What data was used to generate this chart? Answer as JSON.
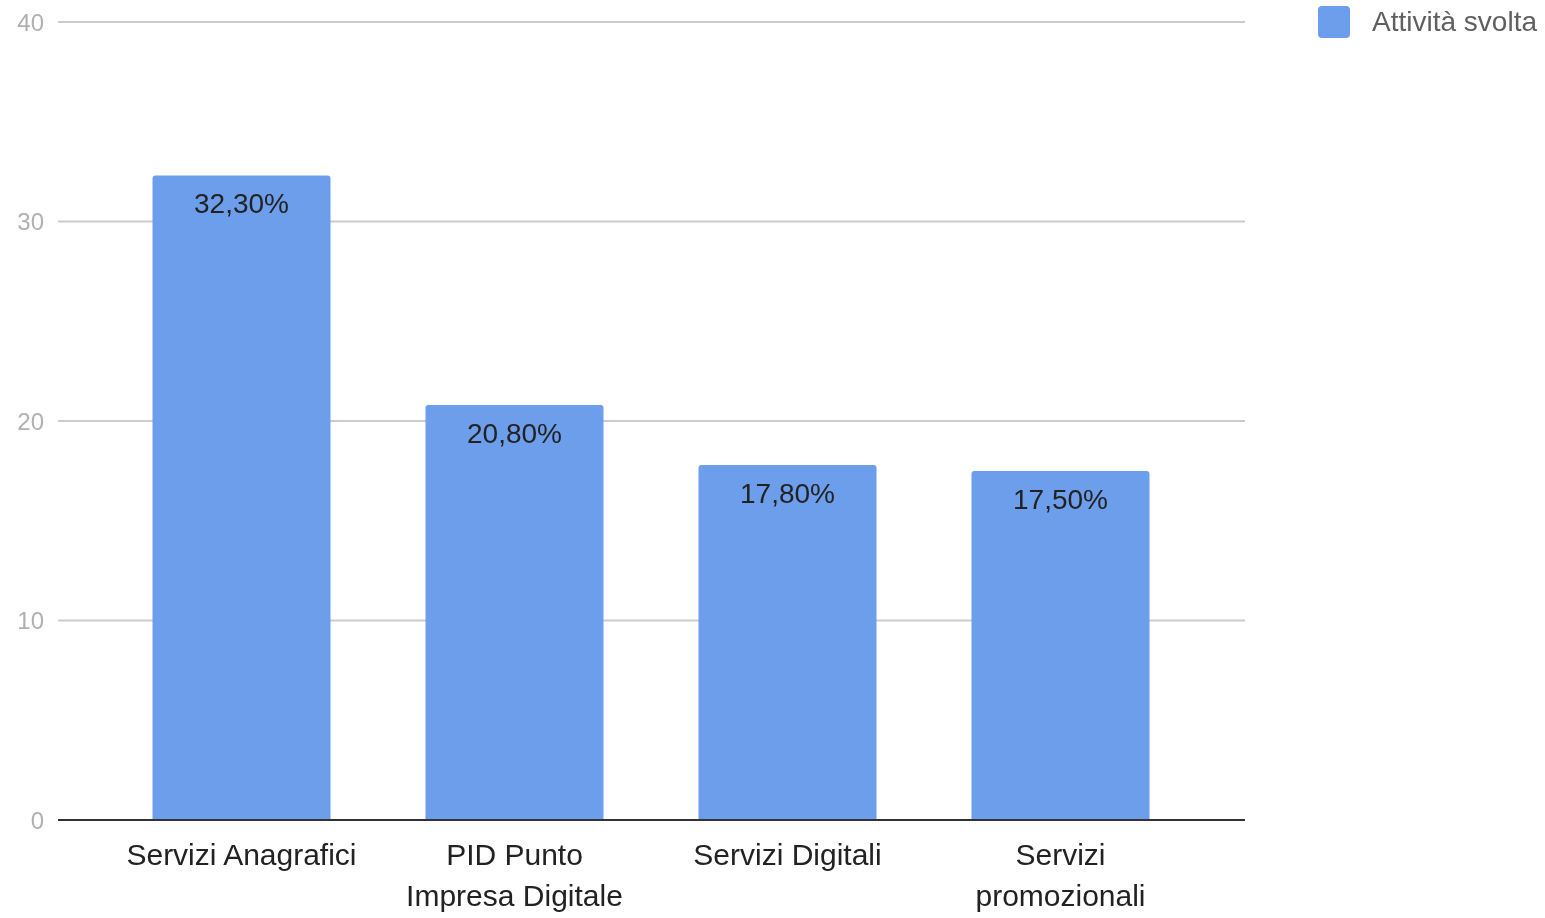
{
  "chart_data": {
    "type": "bar",
    "categories": [
      "Servizi Anagrafici",
      "PID Punto Impresa Digitale",
      "Servizi Digitali",
      "Servizi promozionali"
    ],
    "series": [
      {
        "name": "Attività svolta",
        "color": "#6d9eeb",
        "values": [
          32.3,
          20.8,
          17.8,
          17.5
        ],
        "value_labels": [
          "32,30%",
          "20,80%",
          "17,80%",
          "17,50%"
        ]
      }
    ],
    "ylim": [
      0,
      40
    ],
    "yticks": [
      0,
      10,
      20,
      30,
      40
    ],
    "grid": "y",
    "legend": "top right"
  }
}
